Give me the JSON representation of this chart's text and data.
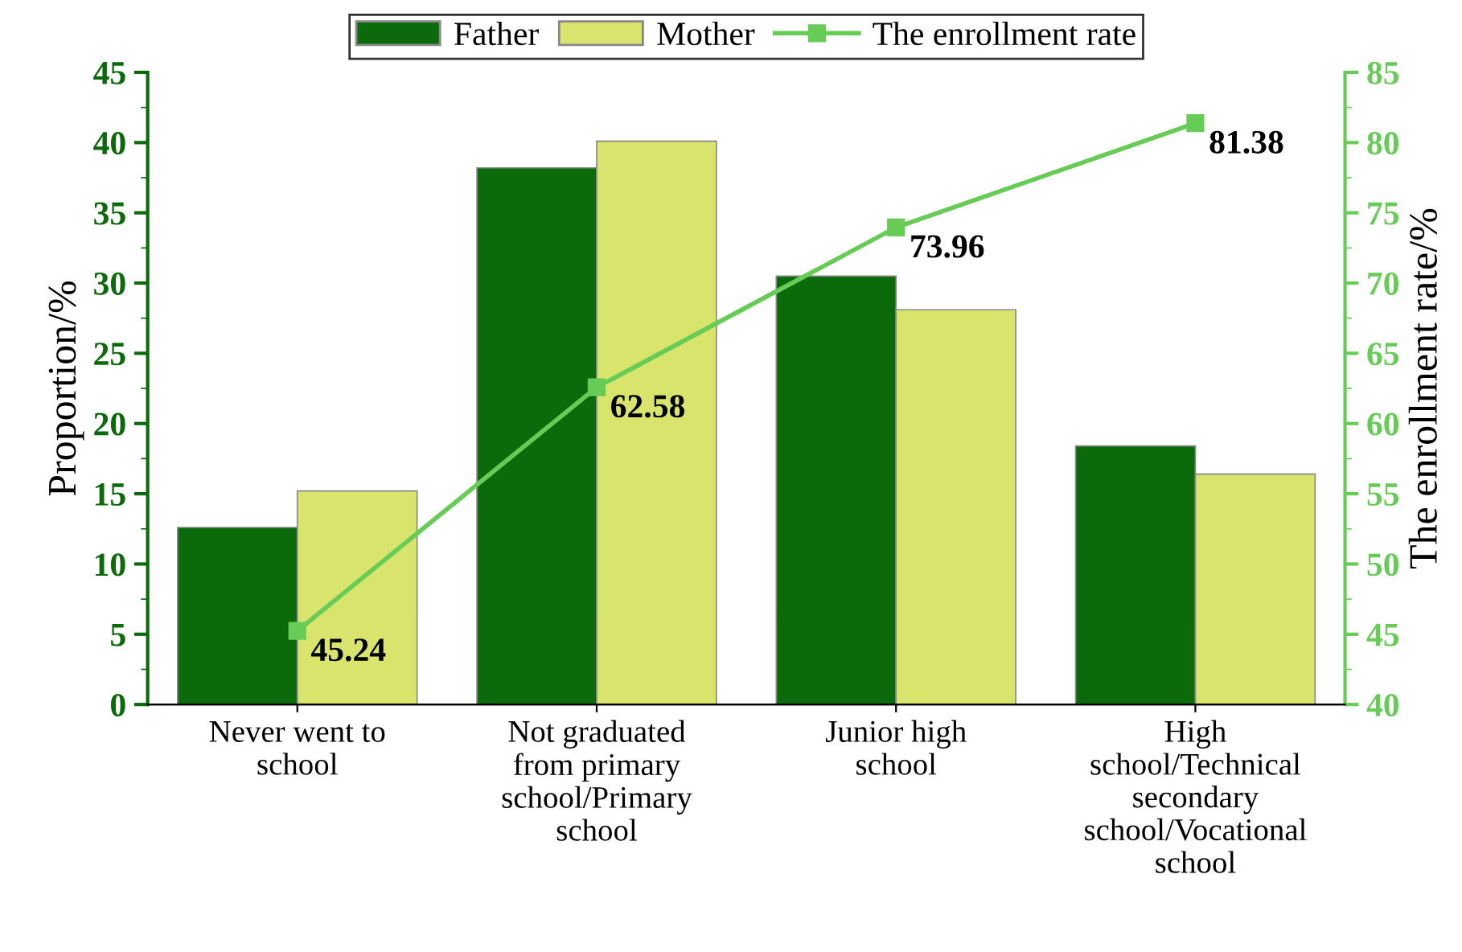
{
  "chart_data": {
    "type": "bar",
    "categories": [
      "Never went to\nschool",
      "Not graduated\nfrom primary\nschool/Primary\nschool",
      "Junior high\nschool",
      "High\nschool/Technical\nsecondary\nschool/Vocational\nschool"
    ],
    "series": [
      {
        "name": "Father",
        "color": "#0b6b0b",
        "values": [
          12.6,
          38.2,
          30.5,
          18.4
        ]
      },
      {
        "name": "Mother",
        "color": "#d9e46c",
        "values": [
          15.2,
          40.1,
          28.1,
          16.4
        ]
      },
      {
        "name": "The enrollment rate",
        "type": "line",
        "axis": "y2",
        "color": "#66cc55",
        "marker": "square",
        "values": [
          45.24,
          62.58,
          73.96,
          81.38
        ],
        "value_labels": [
          "45.24",
          "62.58",
          "73.96",
          "81.38"
        ]
      }
    ],
    "ylabel": "Proportion/%",
    "y2label": "The enrollment rate/%",
    "ylim": [
      0,
      45
    ],
    "yticks": [
      0,
      5,
      10,
      15,
      20,
      25,
      30,
      35,
      40,
      45
    ],
    "y2lim": [
      40,
      85
    ],
    "y2ticks": [
      40,
      45,
      50,
      55,
      60,
      65,
      70,
      75,
      80,
      85
    ],
    "legend": "top",
    "grid": false
  }
}
